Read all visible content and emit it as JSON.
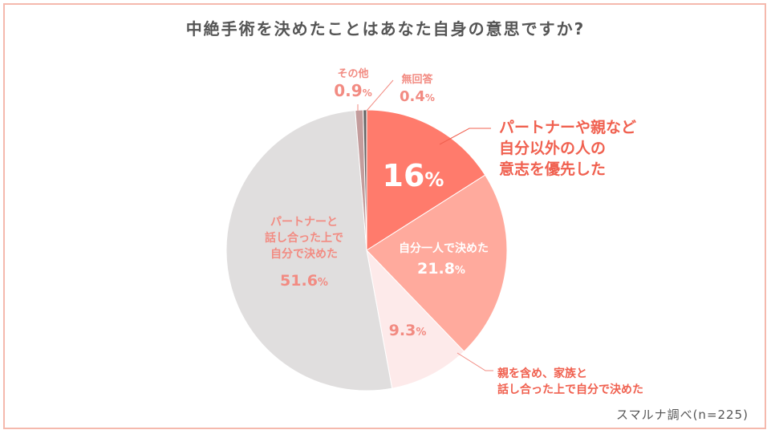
{
  "title": "中絶手術を決めたことはあなた自身の意思ですか?",
  "source": "スマルナ調べ(n=225)",
  "chart_data": {
    "type": "pie",
    "start_angle_deg": 0,
    "direction": "clockwise",
    "slices": [
      {
        "label_lines": [
          "パートナーや親など",
          "自分以外の人の",
          "意志を優先した"
        ],
        "value": 16,
        "display": "16",
        "unit": "%",
        "color": "#ff7b6c"
      },
      {
        "label_lines": [
          "自分一人で決めた"
        ],
        "value": 21.8,
        "display": "21.8",
        "unit": "%",
        "color": "#ffaa9d"
      },
      {
        "label_lines": [
          "親を含め、家族と",
          "話し合った上で自分で決めた"
        ],
        "value": 9.3,
        "display": "9.3",
        "unit": "%",
        "color": "#fdeaea"
      },
      {
        "label_lines": [
          "パートナーと",
          "話し合った上で",
          "自分で決めた"
        ],
        "value": 51.6,
        "display": "51.6",
        "unit": "%",
        "color": "#e0dede"
      },
      {
        "label_lines": [
          "その他"
        ],
        "value": 0.9,
        "display": "0.9",
        "unit": "%",
        "color": "#c39c9c"
      },
      {
        "label_lines": [
          "無回答"
        ],
        "value": 0.4,
        "display": "0.4",
        "unit": "%",
        "color": "#666666"
      }
    ]
  }
}
